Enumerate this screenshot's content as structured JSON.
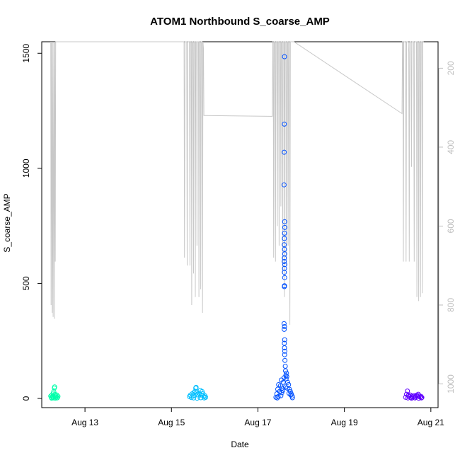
{
  "chart_data": {
    "type": "scatter",
    "title": "ATOM1 Northbound S_coarse_AMP",
    "xlabel": "Date",
    "ylabel": "S_coarse_AMP",
    "x_type": "date",
    "xlim": [
      "2023-08-12 00:00",
      "2023-08-21 04:00"
    ],
    "ylim": [
      -40,
      1550
    ],
    "x_ticks": [
      {
        "date": "2023-08-13 00:00",
        "label": "Aug 13"
      },
      {
        "date": "2023-08-15 00:00",
        "label": "Aug 15"
      },
      {
        "date": "2023-08-17 00:00",
        "label": "Aug 17"
      },
      {
        "date": "2023-08-19 00:00",
        "label": "Aug 19"
      },
      {
        "date": "2023-08-21 00:00",
        "label": "Aug 21"
      }
    ],
    "y_ticks": [
      0,
      500,
      1000,
      1500
    ],
    "right_axis": {
      "color": "#bebebe",
      "reversed": true,
      "ticks": [
        200,
        400,
        600,
        800,
        1000
      ],
      "lim": [
        133,
        1060
      ]
    },
    "series": [
      {
        "color": "#00ffaa",
        "points": [
          [
            "2023-08-12 05:00",
            10
          ],
          [
            "2023-08-12 05:20",
            4
          ],
          [
            "2023-08-12 05:40",
            14
          ],
          [
            "2023-08-12 06:00",
            8
          ],
          [
            "2023-08-12 06:20",
            22
          ],
          [
            "2023-08-12 06:40",
            30
          ],
          [
            "2023-08-12 07:00",
            45
          ],
          [
            "2023-08-12 07:10",
            50
          ],
          [
            "2023-08-12 07:20",
            18
          ],
          [
            "2023-08-12 07:40",
            12
          ],
          [
            "2023-08-12 08:00",
            6
          ],
          [
            "2023-08-12 08:20",
            15
          ],
          [
            "2023-08-12 08:40",
            3
          ],
          [
            "2023-08-12 09:00",
            9
          ],
          [
            "2023-08-12 05:30",
            1
          ],
          [
            "2023-08-12 06:30",
            2
          ],
          [
            "2023-08-12 07:30",
            1
          ],
          [
            "2023-08-12 08:30",
            2
          ],
          [
            "2023-08-12 06:10",
            5
          ],
          [
            "2023-08-12 07:50",
            7
          ]
        ]
      },
      {
        "color": "#00bfff",
        "points": [
          [
            "2023-08-15 10:00",
            8
          ],
          [
            "2023-08-15 10:30",
            14
          ],
          [
            "2023-08-15 11:00",
            4
          ],
          [
            "2023-08-15 11:30",
            20
          ],
          [
            "2023-08-15 12:00",
            12
          ],
          [
            "2023-08-15 12:30",
            25
          ],
          [
            "2023-08-15 13:00",
            30
          ],
          [
            "2023-08-15 13:30",
            45
          ],
          [
            "2023-08-15 13:40",
            48
          ],
          [
            "2023-08-15 14:00",
            28
          ],
          [
            "2023-08-15 14:30",
            18
          ],
          [
            "2023-08-15 15:00",
            10
          ],
          [
            "2023-08-15 15:30",
            22
          ],
          [
            "2023-08-15 16:00",
            35
          ],
          [
            "2023-08-15 16:30",
            15
          ],
          [
            "2023-08-15 17:00",
            30
          ],
          [
            "2023-08-15 17:30",
            20
          ],
          [
            "2023-08-15 18:00",
            8
          ],
          [
            "2023-08-15 18:30",
            12
          ],
          [
            "2023-08-15 19:00",
            5
          ],
          [
            "2023-08-15 12:15",
            2
          ],
          [
            "2023-08-15 14:15",
            1
          ],
          [
            "2023-08-15 16:15",
            3
          ],
          [
            "2023-08-15 18:15",
            2
          ]
        ]
      },
      {
        "color": "#0050ff",
        "points": [
          [
            "2023-08-17 10:00",
            5
          ],
          [
            "2023-08-17 10:30",
            20
          ],
          [
            "2023-08-17 11:00",
            40
          ],
          [
            "2023-08-17 11:30",
            60
          ],
          [
            "2023-08-17 12:00",
            30
          ],
          [
            "2023-08-17 12:30",
            55
          ],
          [
            "2023-08-17 13:00",
            80
          ],
          [
            "2023-08-17 13:30",
            45
          ],
          [
            "2023-08-17 14:00",
            70
          ],
          [
            "2023-08-17 14:30",
            90
          ],
          [
            "2023-08-17 14:45",
            1485
          ],
          [
            "2023-08-17 14:40",
            1192
          ],
          [
            "2023-08-17 14:35",
            1070
          ],
          [
            "2023-08-17 14:30",
            928
          ],
          [
            "2023-08-17 14:50",
            768
          ],
          [
            "2023-08-17 14:55",
            743
          ],
          [
            "2023-08-17 14:45",
            718
          ],
          [
            "2023-08-17 14:40",
            695
          ],
          [
            "2023-08-17 14:35",
            668
          ],
          [
            "2023-08-17 14:45",
            648
          ],
          [
            "2023-08-17 14:50",
            628
          ],
          [
            "2023-08-17 14:40",
            610
          ],
          [
            "2023-08-17 14:35",
            595
          ],
          [
            "2023-08-17 14:55",
            582
          ],
          [
            "2023-08-17 14:45",
            565
          ],
          [
            "2023-08-17 14:40",
            548
          ],
          [
            "2023-08-17 14:50",
            525
          ],
          [
            "2023-08-17 14:45",
            490
          ],
          [
            "2023-08-17 14:40",
            486
          ],
          [
            "2023-08-17 14:30",
            325
          ],
          [
            "2023-08-17 14:45",
            312
          ],
          [
            "2023-08-17 14:35",
            300
          ],
          [
            "2023-08-17 14:50",
            255
          ],
          [
            "2023-08-17 14:40",
            240
          ],
          [
            "2023-08-17 14:45",
            220
          ],
          [
            "2023-08-17 14:55",
            205
          ],
          [
            "2023-08-17 14:50",
            190
          ],
          [
            "2023-08-17 15:00",
            165
          ],
          [
            "2023-08-17 15:10",
            140
          ],
          [
            "2023-08-17 15:20",
            120
          ],
          [
            "2023-08-17 15:30",
            100
          ],
          [
            "2023-08-17 15:40",
            85
          ],
          [
            "2023-08-17 15:50",
            110
          ],
          [
            "2023-08-17 16:00",
            95
          ],
          [
            "2023-08-17 16:30",
            70
          ],
          [
            "2023-08-17 17:00",
            60
          ],
          [
            "2023-08-17 17:30",
            40
          ],
          [
            "2023-08-17 18:00",
            30
          ],
          [
            "2023-08-17 18:30",
            20
          ],
          [
            "2023-08-17 19:00",
            10
          ],
          [
            "2023-08-17 11:15",
            8
          ],
          [
            "2023-08-17 12:45",
            12
          ],
          [
            "2023-08-17 13:15",
            25
          ],
          [
            "2023-08-17 13:45",
            35
          ],
          [
            "2023-08-17 15:15",
            50
          ],
          [
            "2023-08-17 16:15",
            45
          ],
          [
            "2023-08-17 17:15",
            22
          ],
          [
            "2023-08-17 18:15",
            15
          ],
          [
            "2023-08-17 10:45",
            2
          ],
          [
            "2023-08-17 19:10",
            3
          ]
        ]
      },
      {
        "color": "#6000ff",
        "points": [
          [
            "2023-08-20 10:00",
            5
          ],
          [
            "2023-08-20 10:30",
            18
          ],
          [
            "2023-08-20 11:00",
            32
          ],
          [
            "2023-08-20 11:30",
            12
          ],
          [
            "2023-08-20 12:00",
            8
          ],
          [
            "2023-08-20 12:30",
            15
          ],
          [
            "2023-08-20 13:00",
            4
          ],
          [
            "2023-08-20 13:30",
            10
          ],
          [
            "2023-08-20 14:00",
            6
          ],
          [
            "2023-08-20 14:30",
            12
          ],
          [
            "2023-08-20 15:00",
            3
          ],
          [
            "2023-08-20 15:30",
            8
          ],
          [
            "2023-08-20 16:00",
            14
          ],
          [
            "2023-08-20 16:30",
            10
          ],
          [
            "2023-08-20 17:00",
            18
          ],
          [
            "2023-08-20 17:30",
            12
          ],
          [
            "2023-08-20 18:00",
            6
          ],
          [
            "2023-08-20 18:30",
            9
          ],
          [
            "2023-08-20 19:00",
            4
          ],
          [
            "2023-08-20 11:15",
            2
          ],
          [
            "2023-08-20 13:15",
            1
          ],
          [
            "2023-08-20 15:15",
            2
          ],
          [
            "2023-08-20 17:15",
            1
          ],
          [
            "2023-08-20 18:45",
            2
          ]
        ]
      }
    ],
    "secondary_line": {
      "color": "#c8c8c8",
      "axis": "right",
      "points": [
        [
          "2023-08-12 05:00",
          100
        ],
        [
          "2023-08-12 05:10",
          800
        ],
        [
          "2023-08-12 05:20",
          100
        ],
        [
          "2023-08-12 05:50",
          820
        ],
        [
          "2023-08-12 06:00",
          100
        ],
        [
          "2023-08-12 06:20",
          830
        ],
        [
          "2023-08-12 06:40",
          100
        ],
        [
          "2023-08-12 07:00",
          835
        ],
        [
          "2023-08-12 07:10",
          100
        ],
        [
          "2023-08-12 07:30",
          690
        ],
        [
          "2023-08-12 07:45",
          100
        ],
        [
          "2023-08-12 08:00",
          100
        ],
        [
          "2023-08-15 07:00",
          100
        ],
        [
          "2023-08-15 07:15",
          680
        ],
        [
          "2023-08-15 07:30",
          100
        ],
        [
          "2023-08-15 08:30",
          100
        ],
        [
          "2023-08-15 08:45",
          700
        ],
        [
          "2023-08-15 09:00",
          100
        ],
        [
          "2023-08-15 10:00",
          100
        ],
        [
          "2023-08-15 10:15",
          700
        ],
        [
          "2023-08-15 10:30",
          100
        ],
        [
          "2023-08-15 11:00",
          100
        ],
        [
          "2023-08-15 11:15",
          800
        ],
        [
          "2023-08-15 11:30",
          100
        ],
        [
          "2023-08-15 12:00",
          100
        ],
        [
          "2023-08-15 12:15",
          720
        ],
        [
          "2023-08-15 12:30",
          100
        ],
        [
          "2023-08-15 13:00",
          100
        ],
        [
          "2023-08-15 13:15",
          780
        ],
        [
          "2023-08-15 13:30",
          100
        ],
        [
          "2023-08-15 14:00",
          100
        ],
        [
          "2023-08-15 14:10",
          650
        ],
        [
          "2023-08-15 14:20",
          100
        ],
        [
          "2023-08-15 15:00",
          100
        ],
        [
          "2023-08-15 15:15",
          780
        ],
        [
          "2023-08-15 15:30",
          100
        ],
        [
          "2023-08-15 16:00",
          100
        ],
        [
          "2023-08-15 16:15",
          760
        ],
        [
          "2023-08-15 16:30",
          100
        ],
        [
          "2023-08-15 17:00",
          100
        ],
        [
          "2023-08-15 17:15",
          820
        ],
        [
          "2023-08-15 17:30",
          100
        ],
        [
          "2023-08-15 17:45",
          150
        ],
        [
          "2023-08-15 18:00",
          320
        ],
        [
          "2023-08-15 18:15",
          320
        ],
        [
          "2023-08-17 08:00",
          322
        ],
        [
          "2023-08-17 08:15",
          100
        ],
        [
          "2023-08-17 08:30",
          100
        ],
        [
          "2023-08-17 08:45",
          680
        ],
        [
          "2023-08-17 09:00",
          100
        ],
        [
          "2023-08-17 09:30",
          100
        ],
        [
          "2023-08-17 09:45",
          690
        ],
        [
          "2023-08-17 10:00",
          100
        ],
        [
          "2023-08-17 10:30",
          100
        ],
        [
          "2023-08-17 10:45",
          600
        ],
        [
          "2023-08-17 11:00",
          100
        ],
        [
          "2023-08-17 11:30",
          100
        ],
        [
          "2023-08-17 11:45",
          650
        ],
        [
          "2023-08-17 12:00",
          100
        ],
        [
          "2023-08-17 12:30",
          100
        ],
        [
          "2023-08-17 12:45",
          550
        ],
        [
          "2023-08-17 13:00",
          100
        ],
        [
          "2023-08-17 13:30",
          100
        ],
        [
          "2023-08-17 13:45",
          720
        ],
        [
          "2023-08-17 14:00",
          100
        ],
        [
          "2023-08-17 14:30",
          100
        ],
        [
          "2023-08-17 14:45",
          780
        ],
        [
          "2023-08-17 15:00",
          100
        ],
        [
          "2023-08-17 15:30",
          100
        ],
        [
          "2023-08-17 15:45",
          700
        ],
        [
          "2023-08-17 16:00",
          100
        ],
        [
          "2023-08-17 16:30",
          100
        ],
        [
          "2023-08-17 16:45",
          650
        ],
        [
          "2023-08-17 17:00",
          100
        ],
        [
          "2023-08-17 17:30",
          100
        ],
        [
          "2023-08-17 17:45",
          850
        ],
        [
          "2023-08-17 18:00",
          100
        ],
        [
          "2023-08-17 18:30",
          100
        ],
        [
          "2023-08-17 19:00",
          100
        ],
        [
          "2023-08-17 20:00",
          130
        ],
        [
          "2023-08-20 08:00",
          315
        ],
        [
          "2023-08-20 08:15",
          100
        ],
        [
          "2023-08-20 08:30",
          100
        ],
        [
          "2023-08-20 08:45",
          690
        ],
        [
          "2023-08-20 09:00",
          100
        ],
        [
          "2023-08-20 10:00",
          100
        ],
        [
          "2023-08-20 10:15",
          690
        ],
        [
          "2023-08-20 10:30",
          100
        ],
        [
          "2023-08-20 11:30",
          100
        ],
        [
          "2023-08-20 11:45",
          160
        ],
        [
          "2023-08-20 12:00",
          690
        ],
        [
          "2023-08-20 12:15",
          100
        ],
        [
          "2023-08-20 13:00",
          100
        ],
        [
          "2023-08-20 13:15",
          450
        ],
        [
          "2023-08-20 13:30",
          100
        ],
        [
          "2023-08-20 14:30",
          100
        ],
        [
          "2023-08-20 14:45",
          690
        ],
        [
          "2023-08-20 15:00",
          100
        ],
        [
          "2023-08-20 16:00",
          100
        ],
        [
          "2023-08-20 16:15",
          780
        ],
        [
          "2023-08-20 16:30",
          100
        ],
        [
          "2023-08-20 17:00",
          100
        ],
        [
          "2023-08-20 17:15",
          790
        ],
        [
          "2023-08-20 17:30",
          100
        ],
        [
          "2023-08-20 18:00",
          100
        ],
        [
          "2023-08-20 18:15",
          780
        ],
        [
          "2023-08-20 18:30",
          100
        ],
        [
          "2023-08-20 19:00",
          100
        ],
        [
          "2023-08-20 19:15",
          770
        ],
        [
          "2023-08-20 19:30",
          100
        ],
        [
          "2023-08-20 20:00",
          100
        ]
      ]
    },
    "grid": false,
    "point_shape": "open-circle",
    "colors": {
      "axis": "#000000",
      "right_axis": "#bebebe"
    }
  }
}
